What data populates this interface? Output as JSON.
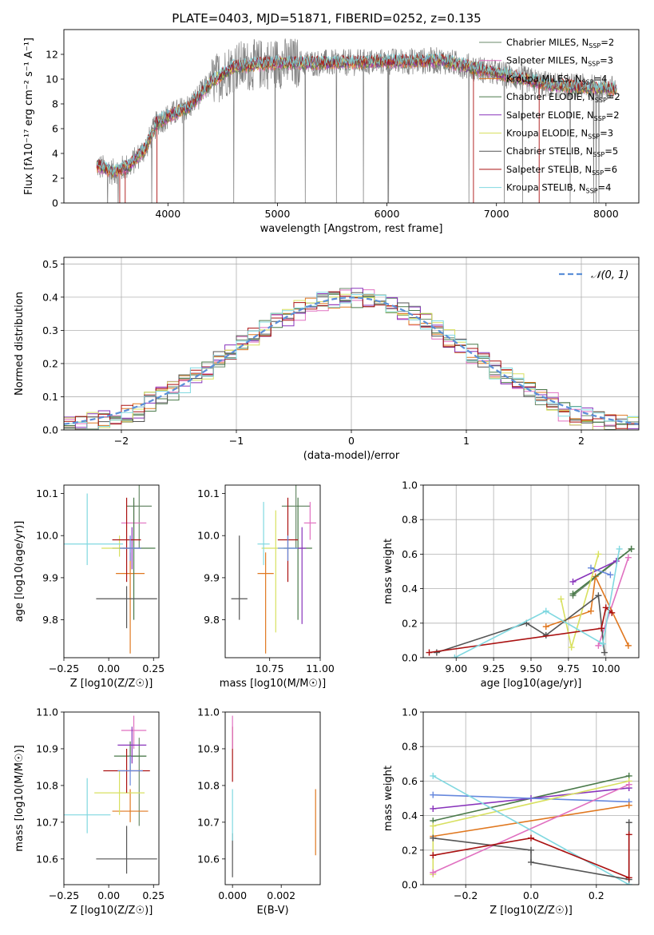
{
  "colors": {
    "Chabrier MILES": "#6a8a6a",
    "Salpeter MILES": "#e070c0",
    "Kroupa MILES": "#e07820",
    "Chabrier ELODIE": "#4a7a4a",
    "Salpeter ELODIE": "#8833bb",
    "Kroupa ELODIE": "#d8e060",
    "Chabrier STELIB": "#555555",
    "Salpeter STELIB": "#aa1111",
    "Kroupa STELIB": "#80d8e0",
    "gaussian": "#5b8fd8",
    "data": "#808080"
  },
  "chart_data": [
    {
      "id": "spectrum",
      "type": "line",
      "title": "PLATE=0403, MJD=51871, FIBERID=0252, z=0.135",
      "xlabel": "wavelength [Angstrom, rest frame]",
      "ylabel": "Flux [fλ10⁻¹⁷ erg cm⁻² s⁻¹ A⁻¹]",
      "xlim": [
        3050,
        8300
      ],
      "ylim": [
        0,
        14
      ],
      "xticks": [
        "4000",
        "5000",
        "6000",
        "7000",
        "8000"
      ],
      "yticks": [
        "0",
        "2",
        "4",
        "6",
        "8",
        "10",
        "12"
      ],
      "legend_position": "right",
      "legend": [
        {
          "label": "Chabrier MILES, N",
          "sub": "SSP",
          "suffix": "=2",
          "color": "#6a8a6a"
        },
        {
          "label": "Salpeter MILES, N",
          "sub": "SSP",
          "suffix": "=3",
          "color": "#e070c0"
        },
        {
          "label": "Kroupa MILES, N",
          "sub": "SSP",
          "suffix": "=4",
          "color": "#e07820"
        },
        {
          "label": "Chabrier ELODIE, N",
          "sub": "SSP",
          "suffix": "=2",
          "color": "#4a7a4a"
        },
        {
          "label": "Salpeter ELODIE, N",
          "sub": "SSP",
          "suffix": "=2",
          "color": "#8833bb"
        },
        {
          "label": "Kroupa ELODIE, N",
          "sub": "SSP",
          "suffix": "=3",
          "color": "#d8e060"
        },
        {
          "label": "Chabrier STELIB, N",
          "sub": "SSP",
          "suffix": "=5",
          "color": "#555555"
        },
        {
          "label": "Salpeter STELIB, N",
          "sub": "SSP",
          "suffix": "=6",
          "color": "#aa1111"
        },
        {
          "label": "Kroupa STELIB, N",
          "sub": "SSP",
          "suffix": "=4",
          "color": "#80d8e0"
        }
      ],
      "continuum": [
        [
          3350,
          3.0
        ],
        [
          3500,
          2.5
        ],
        [
          3650,
          3.0
        ],
        [
          3800,
          4.5
        ],
        [
          3900,
          6.5
        ],
        [
          4050,
          7.2
        ],
        [
          4200,
          7.8
        ],
        [
          4400,
          9.8
        ],
        [
          4600,
          11.0
        ],
        [
          5000,
          11.3
        ],
        [
          5500,
          11.3
        ],
        [
          6000,
          11.4
        ],
        [
          6500,
          11.5
        ],
        [
          7000,
          10.5
        ],
        [
          7500,
          9.5
        ],
        [
          8100,
          9.2
        ]
      ]
    },
    {
      "id": "residuals",
      "type": "line",
      "xlabel": "(data-model)/error",
      "ylabel": "Normed distribution",
      "xlim": [
        -2.5,
        2.5
      ],
      "ylim": [
        0,
        0.52
      ],
      "xticks": [
        "−2",
        "−1",
        "0",
        "1",
        "2"
      ],
      "yticks": [
        "0.0",
        "0.1",
        "0.2",
        "0.3",
        "0.4",
        "0.5"
      ],
      "grid": true,
      "legend_position": "top-right",
      "legend_label": "𝒩(0, 1)",
      "series": [
        {
          "color": "#6a8a6a"
        },
        {
          "color": "#e070c0"
        },
        {
          "color": "#e07820"
        },
        {
          "color": "#4a7a4a"
        },
        {
          "color": "#8833bb"
        },
        {
          "color": "#d8e060"
        },
        {
          "color": "#555555"
        },
        {
          "color": "#aa1111"
        },
        {
          "color": "#80d8e0"
        }
      ]
    },
    {
      "id": "age-vs-z",
      "type": "scatter",
      "xlabel": "Z [log10(Z/Z☉)]",
      "ylabel": "age  [log10(age/yr)]",
      "xlim": [
        -0.25,
        0.28
      ],
      "ylim": [
        9.71,
        10.12
      ],
      "xticks": [
        "−0.25",
        "0.00",
        "0.25"
      ],
      "yticks": [
        "9.8",
        "9.9",
        "10.0",
        "10.1"
      ],
      "points": [
        {
          "x": 0.17,
          "y": 10.07,
          "xerr": 0.07,
          "yerr": [
            0.1,
            0.1
          ],
          "color": "#6a8a6a"
        },
        {
          "x": 0.14,
          "y": 10.03,
          "xerr": 0.07,
          "yerr": [
            0.04,
            0.05
          ],
          "color": "#e070c0"
        },
        {
          "x": 0.12,
          "y": 9.91,
          "xerr": 0.08,
          "yerr": [
            0.19,
            0.05
          ],
          "color": "#e07820"
        },
        {
          "x": 0.14,
          "y": 9.97,
          "xerr": 0.12,
          "yerr": [
            0.17,
            0.12
          ],
          "color": "#4a7a4a"
        },
        {
          "x": 0.13,
          "y": 9.97,
          "xerr": 0.05,
          "yerr": [
            0.05,
            0.05
          ],
          "color": "#8833bb"
        },
        {
          "x": 0.06,
          "y": 9.97,
          "xerr": 0.1,
          "yerr": [
            0.02,
            0.03
          ],
          "color": "#d8e060"
        },
        {
          "x": 0.1,
          "y": 9.85,
          "xerr": 0.17,
          "yerr": [
            0.07,
            0.03
          ],
          "color": "#555555"
        },
        {
          "x": 0.1,
          "y": 9.99,
          "xerr": 0.08,
          "yerr": [
            0.1,
            0.1
          ],
          "color": "#aa1111"
        },
        {
          "x": -0.12,
          "y": 9.98,
          "xerr": 0.2,
          "yerr": [
            0.05,
            0.12
          ],
          "color": "#80d8e0"
        },
        {
          "x": 0.12,
          "y": 9.97,
          "xerr": 0.06,
          "yerr": [
            0.03,
            0.03
          ],
          "color": "#6688dd"
        }
      ]
    },
    {
      "id": "age-vs-mass",
      "type": "scatter",
      "xlabel": "mass [log10(M/M☉)]",
      "xlim": [
        10.53,
        11.0
      ],
      "ylim": [
        9.71,
        10.12
      ],
      "xticks": [
        "10.75",
        "11.00"
      ],
      "yticks": [
        "9.8",
        "9.9",
        "10.0",
        "10.1"
      ],
      "points": [
        {
          "x": 10.88,
          "y": 10.07,
          "xerr": 0.07,
          "yerr": [
            0.1,
            0.1
          ],
          "color": "#6a8a6a"
        },
        {
          "x": 10.95,
          "y": 10.03,
          "xerr": 0.03,
          "yerr": [
            0.04,
            0.05
          ],
          "color": "#e070c0"
        },
        {
          "x": 10.73,
          "y": 9.91,
          "xerr": 0.04,
          "yerr": [
            0.19,
            0.05
          ],
          "color": "#e07820"
        },
        {
          "x": 10.89,
          "y": 9.97,
          "xerr": 0.07,
          "yerr": [
            0.17,
            0.12
          ],
          "color": "#4a7a4a"
        },
        {
          "x": 10.91,
          "y": 9.97,
          "xerr": 0.02,
          "yerr": [
            0.18,
            0.05
          ],
          "color": "#8833bb"
        },
        {
          "x": 10.78,
          "y": 9.97,
          "xerr": 0.07,
          "yerr": [
            0.2,
            0.09
          ],
          "color": "#d8e060"
        },
        {
          "x": 10.6,
          "y": 9.85,
          "xerr": 0.04,
          "yerr": [
            0.05,
            0.15
          ],
          "color": "#555555"
        },
        {
          "x": 10.84,
          "y": 9.99,
          "xerr": 0.05,
          "yerr": [
            0.1,
            0.1
          ],
          "color": "#aa1111"
        },
        {
          "x": 10.72,
          "y": 9.98,
          "xerr": 0.03,
          "yerr": [
            0.05,
            0.1
          ],
          "color": "#80d8e0"
        },
        {
          "x": 10.84,
          "y": 9.97,
          "xerr": 0.05,
          "yerr": [
            0.03,
            0.03
          ],
          "color": "#6688dd"
        }
      ]
    },
    {
      "id": "weight-vs-age",
      "type": "line",
      "ylabel": "mass weight",
      "xlabel": "age  [log10(age/yr)]",
      "xlim": [
        8.78,
        10.22
      ],
      "ylim": [
        0,
        1
      ],
      "xticks": [
        "9.00",
        "9.25",
        "9.50",
        "9.75",
        "10.00"
      ],
      "yticks": [
        "0.0",
        "0.2",
        "0.4",
        "0.6",
        "0.8",
        "1.0"
      ],
      "grid": true,
      "series": [
        {
          "color": "#6a8a6a",
          "points": [
            [
              9.78,
              0.36
            ],
            [
              10.17,
              0.63
            ]
          ]
        },
        {
          "color": "#e070c0",
          "points": [
            [
              9.95,
              0.07
            ],
            [
              10.15,
              0.58
            ]
          ]
        },
        {
          "color": "#e07820",
          "points": [
            [
              9.6,
              0.18
            ],
            [
              9.9,
              0.27
            ],
            [
              9.93,
              0.47
            ],
            [
              10.15,
              0.07
            ]
          ]
        },
        {
          "color": "#4a7a4a",
          "points": [
            [
              9.78,
              0.37
            ],
            [
              10.17,
              0.63
            ]
          ]
        },
        {
          "color": "#8833bb",
          "points": [
            [
              9.78,
              0.44
            ],
            [
              10.07,
              0.56
            ]
          ]
        },
        {
          "color": "#d8e060",
          "points": [
            [
              9.7,
              0.34
            ],
            [
              9.77,
              0.06
            ],
            [
              9.95,
              0.6
            ]
          ]
        },
        {
          "color": "#555555",
          "points": [
            [
              8.87,
              0.03
            ],
            [
              9.47,
              0.2
            ],
            [
              9.6,
              0.13
            ],
            [
              9.95,
              0.36
            ],
            [
              9.99,
              0.03
            ]
          ]
        },
        {
          "color": "#aa1111",
          "points": [
            [
              8.82,
              0.03
            ],
            [
              9.97,
              0.17
            ],
            [
              10.0,
              0.29
            ],
            [
              10.04,
              0.26
            ]
          ]
        },
        {
          "color": "#80d8e0",
          "points": [
            [
              8.99,
              0.0
            ],
            [
              9.6,
              0.27
            ],
            [
              9.98,
              0.08
            ],
            [
              10.09,
              0.63
            ]
          ]
        },
        {
          "color": "#6688dd",
          "points": [
            [
              9.9,
              0.52
            ],
            [
              10.03,
              0.48
            ]
          ]
        }
      ]
    },
    {
      "id": "mass-vs-z",
      "type": "scatter",
      "xlabel": "Z [log10(Z/Z☉)]",
      "ylabel": "mass [log10(M/M☉)]",
      "xlim": [
        -0.25,
        0.28
      ],
      "ylim": [
        10.53,
        11.0
      ],
      "xticks": [
        "−0.25",
        "0.00",
        "0.25"
      ],
      "yticks": [
        "10.6",
        "10.7",
        "10.8",
        "10.9",
        "11.0"
      ],
      "points": [
        {
          "x": 0.17,
          "y": 10.88,
          "xerr": 0.04,
          "yerr": [
            0.19,
            0.05
          ],
          "color": "#6a8a6a"
        },
        {
          "x": 0.14,
          "y": 10.95,
          "xerr": 0.07,
          "yerr": [
            0.05,
            0.04
          ],
          "color": "#e070c0"
        },
        {
          "x": 0.12,
          "y": 10.73,
          "xerr": 0.1,
          "yerr": [
            0.03,
            0.06
          ],
          "color": "#e07820"
        },
        {
          "x": 0.12,
          "y": 10.88,
          "xerr": 0.09,
          "yerr": [
            0.04,
            0.04
          ],
          "color": "#4a7a4a"
        },
        {
          "x": 0.13,
          "y": 10.91,
          "xerr": 0.08,
          "yerr": [
            0.05,
            0.05
          ],
          "color": "#8833bb"
        },
        {
          "x": 0.06,
          "y": 10.78,
          "xerr": 0.14,
          "yerr": [
            0.06,
            0.06
          ],
          "color": "#d8e060"
        },
        {
          "x": 0.1,
          "y": 10.6,
          "xerr": 0.17,
          "yerr": [
            0.04,
            0.09
          ],
          "color": "#555555"
        },
        {
          "x": 0.1,
          "y": 10.84,
          "xerr": 0.13,
          "yerr": [
            0.06,
            0.06
          ],
          "color": "#aa1111"
        },
        {
          "x": -0.12,
          "y": 10.72,
          "xerr": 0.13,
          "yerr": [
            0.05,
            0.1
          ],
          "color": "#80d8e0"
        },
        {
          "x": 0.12,
          "y": 10.84,
          "xerr": 0.07,
          "yerr": [
            0.04,
            0.04
          ],
          "color": "#6688dd"
        }
      ]
    },
    {
      "id": "mass-vs-ebv",
      "type": "scatter",
      "xlabel": "E(B-V)",
      "xlim": [
        -0.0003,
        0.0036
      ],
      "ylim": [
        10.53,
        11.0
      ],
      "xticks": [
        "0.000",
        "0.002"
      ],
      "yticks": [
        "10.6",
        "10.7",
        "10.8",
        "10.9",
        "11.0"
      ],
      "points": [
        {
          "x": 0.0,
          "y": 10.88,
          "xerr": 0,
          "yerr": [
            0.07,
            0.08
          ],
          "color": "#aa1111"
        },
        {
          "x": 0.0,
          "y": 10.95,
          "xerr": 0,
          "yerr": [
            0.05,
            0.04
          ],
          "color": "#e070c0"
        },
        {
          "x": 0.0,
          "y": 10.62,
          "xerr": 0,
          "yerr": [
            0.07,
            0.05
          ],
          "color": "#555555"
        },
        {
          "x": 0.0,
          "y": 10.72,
          "xerr": 0,
          "yerr": [
            0.07,
            0.07
          ],
          "color": "#80d8e0"
        },
        {
          "x": 0.00341,
          "y": 10.7,
          "xerr": 0,
          "yerr": [
            0.09,
            0.09
          ],
          "color": "#e07820"
        }
      ]
    },
    {
      "id": "weight-vs-z",
      "type": "line",
      "ylabel": "mass weight",
      "xlabel": "Z [log10(Z/Z☉)]",
      "xlim": [
        -0.33,
        0.33
      ],
      "ylim": [
        0,
        1
      ],
      "xticks": [
        "−0.2",
        "0.0",
        "0.2"
      ],
      "yticks": [
        "0.0",
        "0.2",
        "0.4",
        "0.6",
        "0.8",
        "1.0"
      ],
      "grid": true,
      "series": [
        {
          "color": "#4a7a4a",
          "points": [
            [
              -0.3,
              0.37
            ],
            [
              0.3,
              0.63
            ]
          ]
        },
        {
          "color": "#8833bb",
          "points": [
            [
              -0.3,
              0.44
            ],
            [
              0.0,
              0.5
            ],
            [
              0.3,
              0.56
            ]
          ]
        },
        {
          "color": "#6688dd",
          "points": [
            [
              -0.3,
              0.52
            ],
            [
              0.3,
              0.48
            ]
          ]
        },
        {
          "color": "#e07820",
          "points": [
            [
              -0.3,
              0.28
            ],
            [
              0.3,
              0.46
            ]
          ]
        },
        {
          "color": "#d8e060",
          "points": [
            [
              -0.3,
              0.06
            ],
            [
              -0.3,
              0.34
            ],
            [
              0.3,
              0.6
            ]
          ]
        },
        {
          "color": "#e070c0",
          "points": [
            [
              -0.3,
              0.07
            ],
            [
              0.3,
              0.58
            ]
          ]
        },
        {
          "color": "#80d8e0",
          "points": [
            [
              -0.3,
              0.63
            ],
            [
              0.3,
              0.0
            ]
          ]
        },
        {
          "color": "#555555",
          "points": [
            [
              -0.3,
              0.27
            ],
            [
              0.0,
              0.2
            ],
            [
              0.0,
              0.13
            ],
            [
              0.3,
              0.03
            ],
            [
              0.3,
              0.36
            ]
          ]
        },
        {
          "color": "#aa1111",
          "points": [
            [
              -0.3,
              0.17
            ],
            [
              0.0,
              0.27
            ],
            [
              0.3,
              0.04
            ],
            [
              0.3,
              0.29
            ]
          ]
        }
      ]
    }
  ]
}
